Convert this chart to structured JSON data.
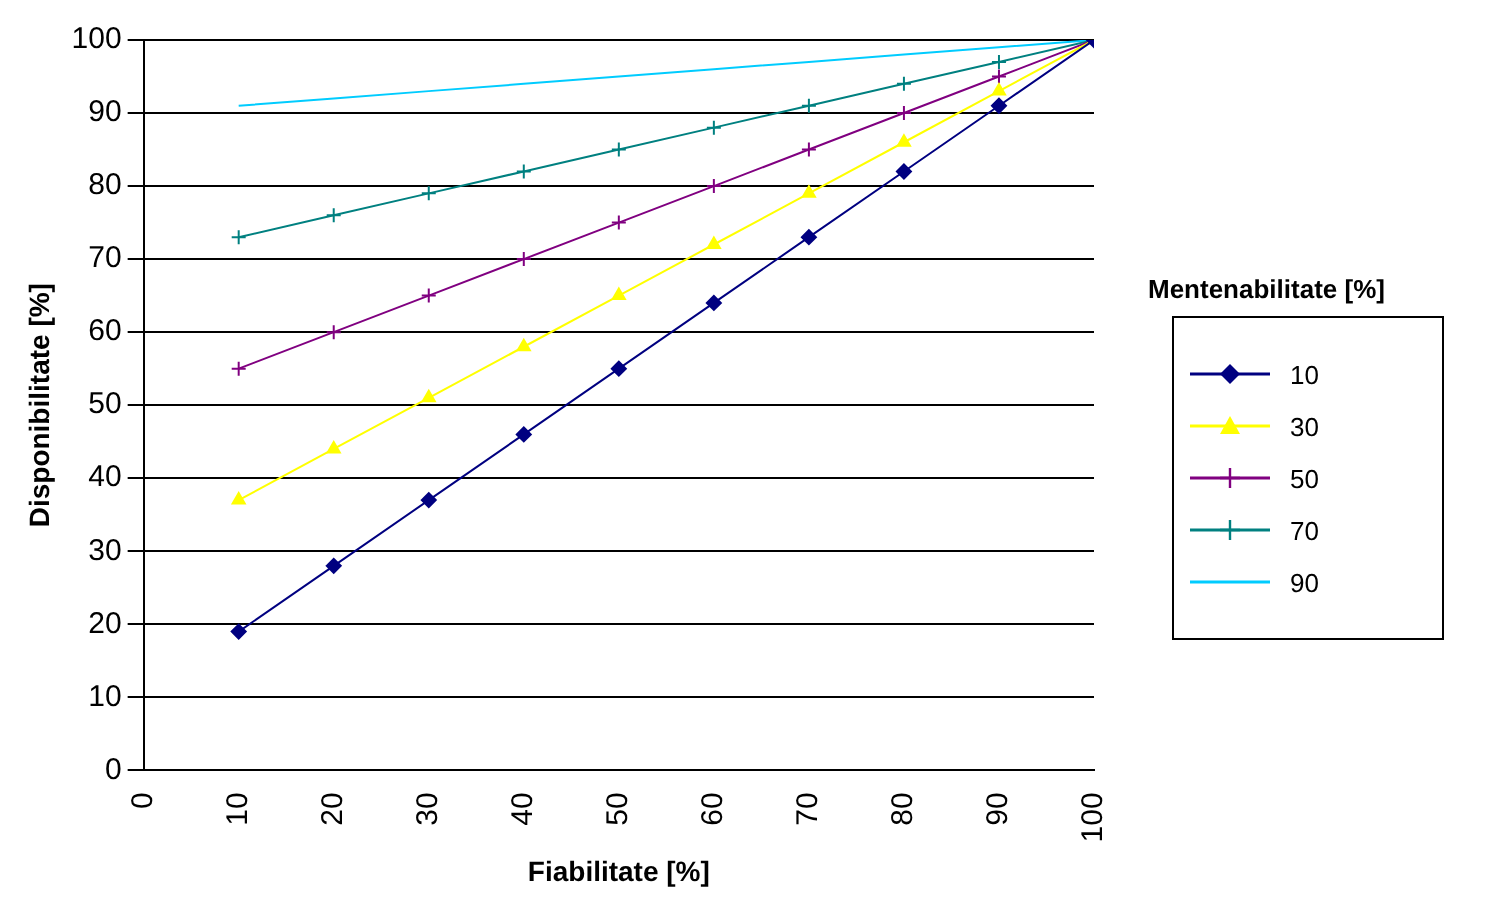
{
  "chart_data": {
    "type": "line",
    "xlabel": "Fiabilitate [%]",
    "ylabel": "Disponibilitate [%]",
    "legend_title": "Mentenabilitate [%]",
    "legend": "right",
    "grid": "y",
    "xlim": [
      0,
      100
    ],
    "xticks": [
      0,
      10,
      20,
      30,
      40,
      50,
      60,
      70,
      80,
      90,
      100
    ],
    "ylim": [
      0,
      100
    ],
    "yticks": [
      0,
      10,
      20,
      30,
      40,
      50,
      60,
      70,
      80,
      90,
      100
    ],
    "series": [
      {
        "name": "10",
        "color": "#000080",
        "marker": "diamond",
        "x": [
          10,
          20,
          30,
          40,
          50,
          60,
          70,
          80,
          90,
          100
        ],
        "values": [
          19,
          28,
          37,
          46,
          55,
          64,
          73,
          82,
          91,
          100
        ]
      },
      {
        "name": "30",
        "color": "#ffff00",
        "marker": "triangle",
        "x": [
          10,
          20,
          30,
          40,
          50,
          60,
          70,
          80,
          90,
          100
        ],
        "values": [
          37,
          44,
          51,
          58,
          65,
          72,
          79,
          86,
          93,
          100
        ]
      },
      {
        "name": "50",
        "color": "#800080",
        "marker": "cross",
        "x": [
          10,
          20,
          30,
          40,
          50,
          60,
          70,
          80,
          90,
          100
        ],
        "values": [
          55,
          60,
          65,
          70,
          75,
          80,
          85,
          90,
          95,
          100
        ]
      },
      {
        "name": "70",
        "color": "#008080",
        "marker": "cross",
        "x": [
          10,
          20,
          30,
          40,
          50,
          60,
          70,
          80,
          90,
          100
        ],
        "values": [
          73,
          76,
          79,
          82,
          85,
          88,
          91,
          94,
          97,
          100
        ]
      },
      {
        "name": "90",
        "color": "#00ccff",
        "marker": "none",
        "x": [
          10,
          20,
          30,
          40,
          50,
          60,
          70,
          80,
          90,
          100
        ],
        "values": [
          91,
          92,
          93,
          94,
          95,
          96,
          97,
          98,
          99,
          100
        ]
      }
    ]
  }
}
